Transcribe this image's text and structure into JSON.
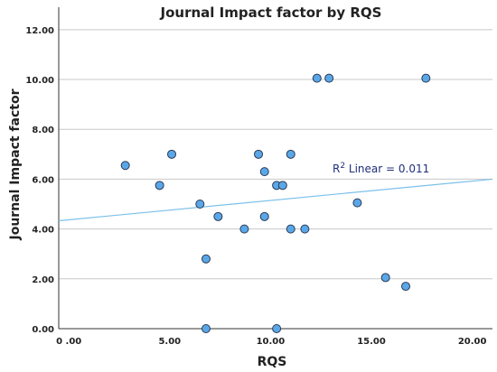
{
  "chart_data": {
    "type": "scatter",
    "title": "Journal Impact factor by RQS",
    "xlabel": "RQS",
    "ylabel": "Journal Impact factor",
    "xlim": [
      -0.5,
      21.0
    ],
    "ylim": [
      0,
      12.9
    ],
    "x_ticks": [
      0,
      5,
      10,
      15,
      20
    ],
    "x_tick_labels": [
      "0 .00",
      "5.00",
      "10.00",
      "15.00",
      "20.00"
    ],
    "y_ticks": [
      0,
      2,
      4,
      6,
      8,
      10,
      12
    ],
    "y_tick_labels": [
      "0.00",
      "2.00",
      "4.00",
      "6.00",
      "8.00",
      "10.00",
      "12.00"
    ],
    "grid": "horizontal",
    "points": [
      {
        "x": 2.8,
        "y": 6.55
      },
      {
        "x": 4.5,
        "y": 5.75
      },
      {
        "x": 5.1,
        "y": 7.0
      },
      {
        "x": 6.5,
        "y": 5.0
      },
      {
        "x": 6.8,
        "y": 2.8
      },
      {
        "x": 6.8,
        "y": 0.0
      },
      {
        "x": 7.4,
        "y": 4.5
      },
      {
        "x": 8.7,
        "y": 4.0
      },
      {
        "x": 9.4,
        "y": 7.0
      },
      {
        "x": 9.7,
        "y": 6.3
      },
      {
        "x": 9.7,
        "y": 4.5
      },
      {
        "x": 10.3,
        "y": 5.75
      },
      {
        "x": 10.6,
        "y": 5.75
      },
      {
        "x": 11.0,
        "y": 7.0
      },
      {
        "x": 11.0,
        "y": 4.0
      },
      {
        "x": 11.7,
        "y": 4.0
      },
      {
        "x": 10.3,
        "y": 0.0
      },
      {
        "x": 12.3,
        "y": 10.05
      },
      {
        "x": 12.9,
        "y": 10.05
      },
      {
        "x": 14.3,
        "y": 5.05
      },
      {
        "x": 15.7,
        "y": 2.05
      },
      {
        "x": 16.7,
        "y": 1.7
      },
      {
        "x": 17.7,
        "y": 10.05
      }
    ],
    "fit_line": {
      "x": [
        -0.5,
        21.0
      ],
      "y": [
        4.33,
        6.0
      ]
    },
    "annotation": {
      "prefix": "R",
      "sup": "2",
      "text": " Linear = 0.011"
    },
    "colors": {
      "point_fill": "#5aa7e8",
      "point_stroke": "#2a3a55",
      "fit_line": "#7cc0ea",
      "grid": "#c8c8c8",
      "annotation": "#1f2f7a"
    }
  }
}
